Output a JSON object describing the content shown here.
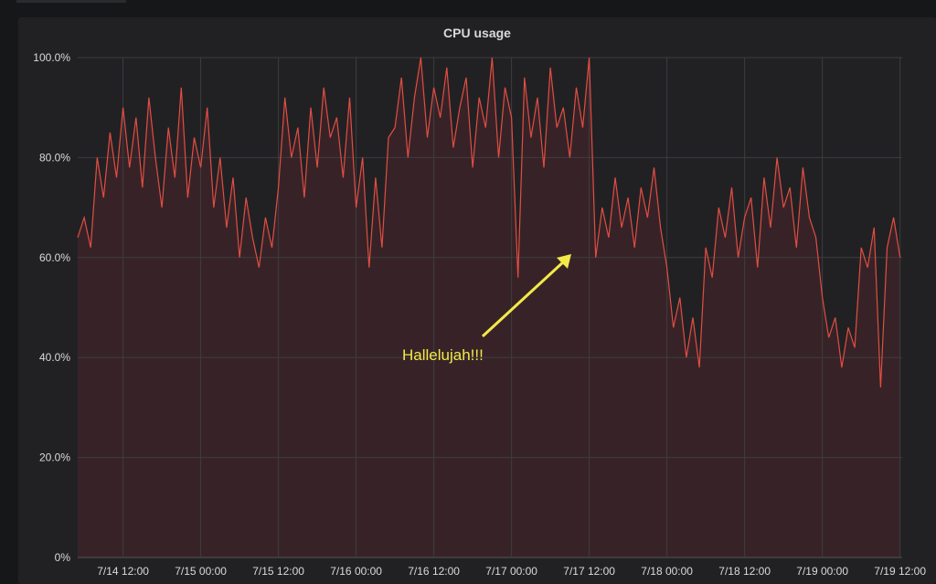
{
  "chart_data": {
    "type": "area",
    "title": "CPU usage",
    "xlabel": "",
    "ylabel": "",
    "x_start": "7/14 05:00",
    "x_step": "1 hour",
    "xlim": [
      "7/14 05:00",
      "7/19 12:20"
    ],
    "ylim": [
      0,
      100
    ],
    "y_ticks": [
      "0%",
      "20.0%",
      "40.0%",
      "60.0%",
      "80.0%",
      "100.0%"
    ],
    "x_ticks": [
      "7/14 12:00",
      "7/15 00:00",
      "7/15 12:00",
      "7/16 00:00",
      "7/16 12:00",
      "7/17 00:00",
      "7/17 12:00",
      "7/18 00:00",
      "7/18 12:00",
      "7/19 00:00",
      "7/19 12:00"
    ],
    "grid": true,
    "legend": "none",
    "line_color": "#e24d42",
    "fill_color": "#3a2428",
    "values": [
      64,
      68,
      62,
      80,
      72,
      85,
      76,
      90,
      78,
      88,
      74,
      92,
      80,
      70,
      86,
      76,
      94,
      72,
      84,
      78,
      90,
      70,
      80,
      66,
      76,
      60,
      72,
      64,
      58,
      68,
      62,
      74,
      92,
      80,
      86,
      72,
      90,
      78,
      94,
      84,
      88,
      76,
      92,
      70,
      80,
      58,
      76,
      62,
      84,
      86,
      96,
      80,
      92,
      100,
      84,
      94,
      88,
      98,
      82,
      90,
      96,
      78,
      92,
      86,
      100,
      80,
      94,
      88,
      56,
      96,
      84,
      92,
      78,
      98,
      86,
      90,
      80,
      94,
      86,
      100,
      60,
      70,
      64,
      76,
      66,
      72,
      62,
      74,
      68,
      78,
      66,
      58,
      46,
      52,
      40,
      48,
      38,
      62,
      56,
      70,
      64,
      74,
      60,
      68,
      72,
      58,
      76,
      66,
      80,
      70,
      74,
      62,
      78,
      68,
      64,
      52,
      44,
      48,
      38,
      46,
      42,
      62,
      58,
      66,
      34,
      62,
      68,
      60
    ],
    "annotation": {
      "text": "Hallelujah!!!",
      "color": "#f2e94a",
      "points_to": "7/17 13:00"
    }
  }
}
